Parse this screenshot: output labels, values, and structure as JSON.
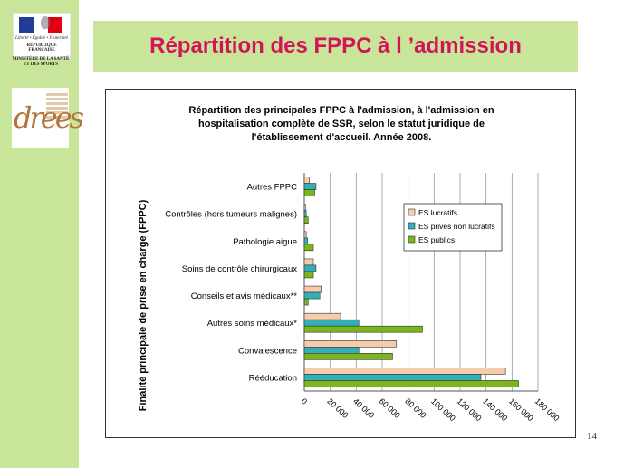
{
  "logos": {
    "gov_motto": "Liberté • Égalité • Fraternité",
    "gov_republic": "RÉPUBLIQUE FRANÇAISE",
    "ministry": [
      "MINISTÈRE DE LA SANTÉ",
      "ET DES SPORTS"
    ],
    "drees": "drees",
    "flag_colors": [
      "#1f3d99",
      "#ffffff",
      "#e1000f"
    ]
  },
  "slide": {
    "title": "Répartition des FPPC à l ’admission",
    "page_number": "14"
  },
  "chart_data": {
    "type": "bar",
    "orientation": "horizontal",
    "title_lines": [
      "Répartition des principales FPPC à l'admission, à l'admission en",
      "hospitalisation complète de SSR, selon le statut juridique de",
      "l'établissement d'accueil. Année 2008."
    ],
    "ylabel": "Finalité principale de prise en charge (FPPC)",
    "xlabel": "",
    "xlim": [
      0,
      180000
    ],
    "xticks": [
      0,
      20000,
      40000,
      60000,
      80000,
      100000,
      120000,
      140000,
      160000,
      180000
    ],
    "xtick_labels": [
      "0",
      "20 000",
      "40 000",
      "60 000",
      "80 000",
      "100 000",
      "120 000",
      "140 000",
      "160 000",
      "180 000"
    ],
    "grid": true,
    "legend_position": "right",
    "categories": [
      "Autres FPPC",
      "Contrôles (hors tumeurs malignes)",
      "Pathologie aigue",
      "Soins de contrôle chirurgicaux",
      "Conseils et avis médicaux**",
      "Autres soins médicaux*",
      "Convalescence",
      "Rééducation"
    ],
    "series": [
      {
        "name": "ES lucratifs",
        "color": "#f7cbac",
        "values": [
          4000,
          1000,
          1500,
          7000,
          13000,
          28000,
          71000,
          155000
        ]
      },
      {
        "name": "ES privés non lucratifs",
        "color": "#33b0b5",
        "values": [
          9000,
          1500,
          2500,
          9000,
          12000,
          42000,
          42000,
          136000
        ]
      },
      {
        "name": "ES publics",
        "color": "#7ab51d",
        "values": [
          8000,
          3000,
          7000,
          7000,
          3000,
          91000,
          68000,
          165000
        ]
      }
    ]
  }
}
